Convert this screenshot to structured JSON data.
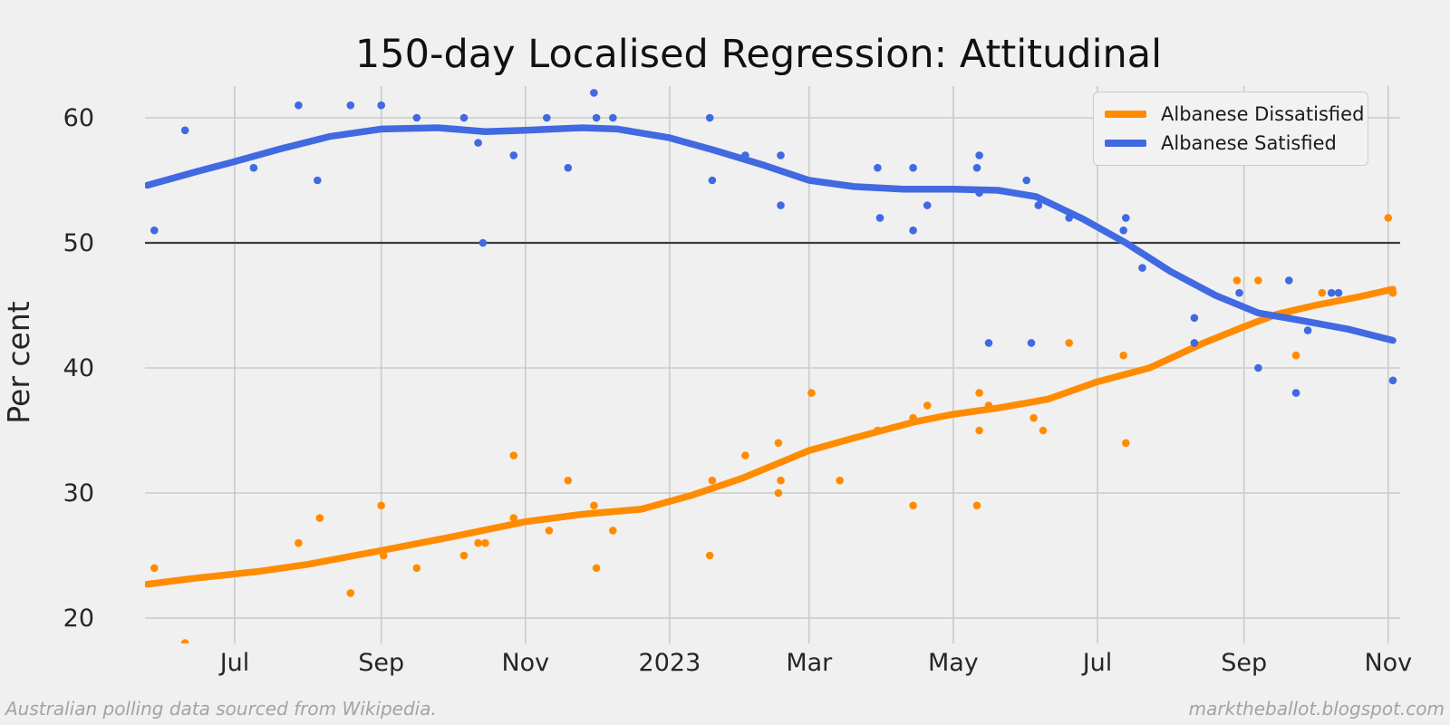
{
  "title": "150-day Localised Regression: Attitudinal",
  "footer": {
    "left": "Australian polling data sourced from Wikipedia.",
    "right": "marktheballot.blogspot.com"
  },
  "colors": {
    "background": "#f0f0f0",
    "gridline": "#cbcbcb",
    "reference_line": "#3d3d3d",
    "tick_text": "#262626",
    "title_text": "#111111",
    "footer_text": "#a3a3a3",
    "dissatisfied": "#ff8c00",
    "satisfied": "#4169e1"
  },
  "chart_data": {
    "type": "scatter",
    "title": "150-day Localised Regression: Attitudinal",
    "xlabel": "",
    "ylabel": "Per cent",
    "y_ticks": [
      20,
      30,
      40,
      50,
      60
    ],
    "y_range": [
      18,
      62.5
    ],
    "reference_line_y": 50,
    "grid": true,
    "legend_position": "upper right",
    "x_ticks": [
      {
        "date": "2022-07-01",
        "label": "Jul"
      },
      {
        "date": "2022-09-01",
        "label": "Sep"
      },
      {
        "date": "2022-11-01",
        "label": "Nov"
      },
      {
        "date": "2023-01-01",
        "label": "2023"
      },
      {
        "date": "2023-03-01",
        "label": "Mar"
      },
      {
        "date": "2023-05-01",
        "label": "May"
      },
      {
        "date": "2023-07-01",
        "label": "Jul"
      },
      {
        "date": "2023-09-01",
        "label": "Sep"
      },
      {
        "date": "2023-11-01",
        "label": "Nov"
      }
    ],
    "x_range": [
      "2022-05-24",
      "2023-11-08"
    ],
    "series": [
      {
        "name": "Albanese Dissatisfied",
        "color": "#ff8c00",
        "points": [
          [
            "2022-05-28",
            24
          ],
          [
            "2022-06-10",
            18
          ],
          [
            "2022-07-28",
            26
          ],
          [
            "2022-08-06",
            28
          ],
          [
            "2022-08-19",
            22
          ],
          [
            "2022-09-01",
            29
          ],
          [
            "2022-09-02",
            25
          ],
          [
            "2022-09-16",
            24
          ],
          [
            "2022-10-06",
            25
          ],
          [
            "2022-10-12",
            26
          ],
          [
            "2022-10-15",
            26
          ],
          [
            "2022-10-27",
            33
          ],
          [
            "2022-10-27",
            28
          ],
          [
            "2022-11-11",
            27
          ],
          [
            "2022-11-19",
            31
          ],
          [
            "2022-11-30",
            29
          ],
          [
            "2022-12-01",
            24
          ],
          [
            "2022-12-08",
            27
          ],
          [
            "2023-01-18",
            25
          ],
          [
            "2023-01-19",
            31
          ],
          [
            "2023-02-02",
            33
          ],
          [
            "2023-02-16",
            34
          ],
          [
            "2023-02-16",
            30
          ],
          [
            "2023-02-17",
            31
          ],
          [
            "2023-03-02",
            38
          ],
          [
            "2023-03-14",
            31
          ],
          [
            "2023-03-30",
            35
          ],
          [
            "2023-04-14",
            36
          ],
          [
            "2023-04-14",
            29
          ],
          [
            "2023-04-20",
            37
          ],
          [
            "2023-05-11",
            29
          ],
          [
            "2023-05-12",
            38
          ],
          [
            "2023-05-12",
            35
          ],
          [
            "2023-05-16",
            37
          ],
          [
            "2023-06-04",
            36
          ],
          [
            "2023-06-08",
            35
          ],
          [
            "2023-06-19",
            42
          ],
          [
            "2023-07-12",
            41
          ],
          [
            "2023-07-13",
            34
          ],
          [
            "2023-08-29",
            47
          ],
          [
            "2023-09-07",
            47
          ],
          [
            "2023-09-20",
            44
          ],
          [
            "2023-09-23",
            41
          ],
          [
            "2023-10-04",
            46
          ],
          [
            "2023-11-01",
            52
          ],
          [
            "2023-11-03",
            46
          ]
        ],
        "trend": [
          [
            "2022-05-25",
            22.7
          ],
          [
            "2022-06-15",
            23.2
          ],
          [
            "2022-07-10",
            23.7
          ],
          [
            "2022-08-01",
            24.3
          ],
          [
            "2022-09-01",
            25.4
          ],
          [
            "2022-10-01",
            26.5
          ],
          [
            "2022-11-01",
            27.7
          ],
          [
            "2022-11-25",
            28.3
          ],
          [
            "2022-12-20",
            28.7
          ],
          [
            "2023-01-10",
            29.8
          ],
          [
            "2023-02-01",
            31.2
          ],
          [
            "2023-03-01",
            33.4
          ],
          [
            "2023-03-20",
            34.4
          ],
          [
            "2023-04-15",
            35.7
          ],
          [
            "2023-05-01",
            36.3
          ],
          [
            "2023-05-20",
            36.8
          ],
          [
            "2023-06-10",
            37.5
          ],
          [
            "2023-07-01",
            38.9
          ],
          [
            "2023-07-23",
            40.0
          ],
          [
            "2023-08-15",
            42.0
          ],
          [
            "2023-09-01",
            43.3
          ],
          [
            "2023-09-15",
            44.3
          ],
          [
            "2023-10-01",
            45.0
          ],
          [
            "2023-10-20",
            45.7
          ],
          [
            "2023-11-03",
            46.3
          ]
        ]
      },
      {
        "name": "Albanese Satisfied",
        "color": "#4169e1",
        "points": [
          [
            "2022-05-28",
            51
          ],
          [
            "2022-06-10",
            59
          ],
          [
            "2022-07-09",
            56
          ],
          [
            "2022-07-28",
            61
          ],
          [
            "2022-08-05",
            55
          ],
          [
            "2022-08-19",
            61
          ],
          [
            "2022-09-01",
            61
          ],
          [
            "2022-09-16",
            60
          ],
          [
            "2022-10-06",
            60
          ],
          [
            "2022-10-12",
            58
          ],
          [
            "2022-10-14",
            50
          ],
          [
            "2022-10-27",
            57
          ],
          [
            "2022-11-10",
            60
          ],
          [
            "2022-11-19",
            56
          ],
          [
            "2022-11-30",
            62
          ],
          [
            "2022-12-01",
            60
          ],
          [
            "2022-12-08",
            60
          ],
          [
            "2023-01-18",
            60
          ],
          [
            "2023-01-19",
            55
          ],
          [
            "2023-02-02",
            57
          ],
          [
            "2023-02-17",
            57
          ],
          [
            "2023-02-17",
            53
          ],
          [
            "2023-03-30",
            56
          ],
          [
            "2023-03-31",
            52
          ],
          [
            "2023-04-14",
            56
          ],
          [
            "2023-04-14",
            51
          ],
          [
            "2023-04-20",
            53
          ],
          [
            "2023-05-11",
            56
          ],
          [
            "2023-05-12",
            57
          ],
          [
            "2023-05-12",
            54
          ],
          [
            "2023-05-16",
            42
          ],
          [
            "2023-06-01",
            55
          ],
          [
            "2023-06-03",
            42
          ],
          [
            "2023-06-06",
            53
          ],
          [
            "2023-06-19",
            52
          ],
          [
            "2023-07-12",
            51
          ],
          [
            "2023-07-13",
            52
          ],
          [
            "2023-07-20",
            48
          ],
          [
            "2023-08-11",
            44
          ],
          [
            "2023-08-11",
            42
          ],
          [
            "2023-08-30",
            46
          ],
          [
            "2023-09-07",
            40
          ],
          [
            "2023-09-20",
            47
          ],
          [
            "2023-09-23",
            38
          ],
          [
            "2023-09-28",
            43
          ],
          [
            "2023-10-08",
            46
          ],
          [
            "2023-10-11",
            46
          ],
          [
            "2023-11-03",
            39
          ]
        ],
        "trend": [
          [
            "2022-05-25",
            54.6
          ],
          [
            "2022-06-15",
            55.7
          ],
          [
            "2022-07-01",
            56.5
          ],
          [
            "2022-07-20",
            57.5
          ],
          [
            "2022-08-10",
            58.5
          ],
          [
            "2022-09-01",
            59.1
          ],
          [
            "2022-09-25",
            59.2
          ],
          [
            "2022-10-15",
            58.9
          ],
          [
            "2022-11-01",
            59.0
          ],
          [
            "2022-11-25",
            59.2
          ],
          [
            "2022-12-10",
            59.1
          ],
          [
            "2023-01-01",
            58.4
          ],
          [
            "2023-01-20",
            57.4
          ],
          [
            "2023-02-10",
            56.2
          ],
          [
            "2023-03-01",
            55.0
          ],
          [
            "2023-03-20",
            54.5
          ],
          [
            "2023-04-10",
            54.3
          ],
          [
            "2023-05-01",
            54.3
          ],
          [
            "2023-05-20",
            54.2
          ],
          [
            "2023-06-05",
            53.7
          ],
          [
            "2023-06-25",
            51.9
          ],
          [
            "2023-07-13",
            50.0
          ],
          [
            "2023-08-01",
            47.7
          ],
          [
            "2023-08-20",
            45.8
          ],
          [
            "2023-09-07",
            44.4
          ],
          [
            "2023-09-25",
            43.8
          ],
          [
            "2023-10-15",
            43.1
          ],
          [
            "2023-11-03",
            42.2
          ]
        ]
      }
    ]
  }
}
